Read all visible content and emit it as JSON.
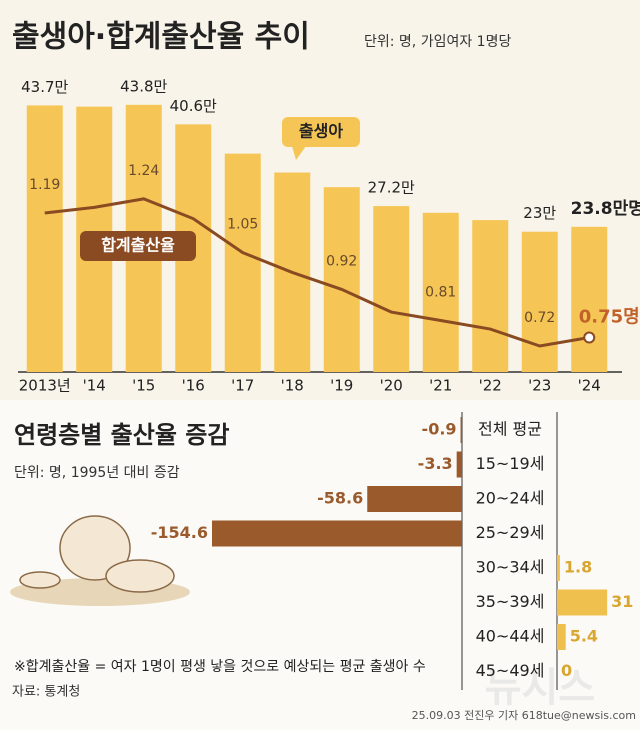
{
  "title": "출생아·합계출산율 추이",
  "unit": "단위: 명, 가임여자 1명당",
  "chart_data": [
    {
      "type": "bar-line",
      "categories": [
        "2013년",
        "'14",
        "'15",
        "'16",
        "'17",
        "'18",
        "'19",
        "'20",
        "'21",
        "'22",
        "'23",
        "'24"
      ],
      "series": [
        {
          "name": "출생아",
          "color": "#f5c656",
          "values": [
            43.7,
            43.5,
            43.8,
            40.6,
            35.8,
            32.7,
            30.3,
            27.2,
            26.1,
            24.9,
            23,
            23.8
          ],
          "value_labels": [
            "43.7만",
            null,
            "43.8만",
            "40.6만",
            null,
            null,
            null,
            "27.2만",
            null,
            null,
            "23만",
            "23.8만명"
          ]
        },
        {
          "name": "합계출산율",
          "color": "#8a4a22",
          "values": [
            1.19,
            1.21,
            1.24,
            1.17,
            1.05,
            0.98,
            0.92,
            0.84,
            0.81,
            0.78,
            0.72,
            0.75
          ],
          "value_labels": [
            "1.19",
            null,
            "1.24",
            null,
            "1.05",
            null,
            "0.92",
            null,
            "0.81",
            null,
            "0.72",
            "0.75명"
          ]
        }
      ]
    },
    {
      "type": "diverging-bar",
      "title": "연령층별 출산율 증감",
      "subtitle": "단위: 명, 1995년 대비 증감",
      "categories": [
        "전체 평균",
        "15~19세",
        "20~24세",
        "25~29세",
        "30~34세",
        "35~39세",
        "40~44세",
        "45~49세"
      ],
      "values": [
        -0.9,
        -3.3,
        -58.6,
        -154.6,
        1.8,
        31,
        5.4,
        0
      ],
      "negative_color": "#9a5a2c",
      "positive_color": "#f0c04e"
    }
  ],
  "footnote": "※합계출산율 = 여자 1명이 평생 낳을 것으로 예상되는 평균 출생아 수",
  "source": "자료: 통계청",
  "credit": "25.09.03 전진우 기자 618tue@newsis.com",
  "watermark": "뉴시스"
}
